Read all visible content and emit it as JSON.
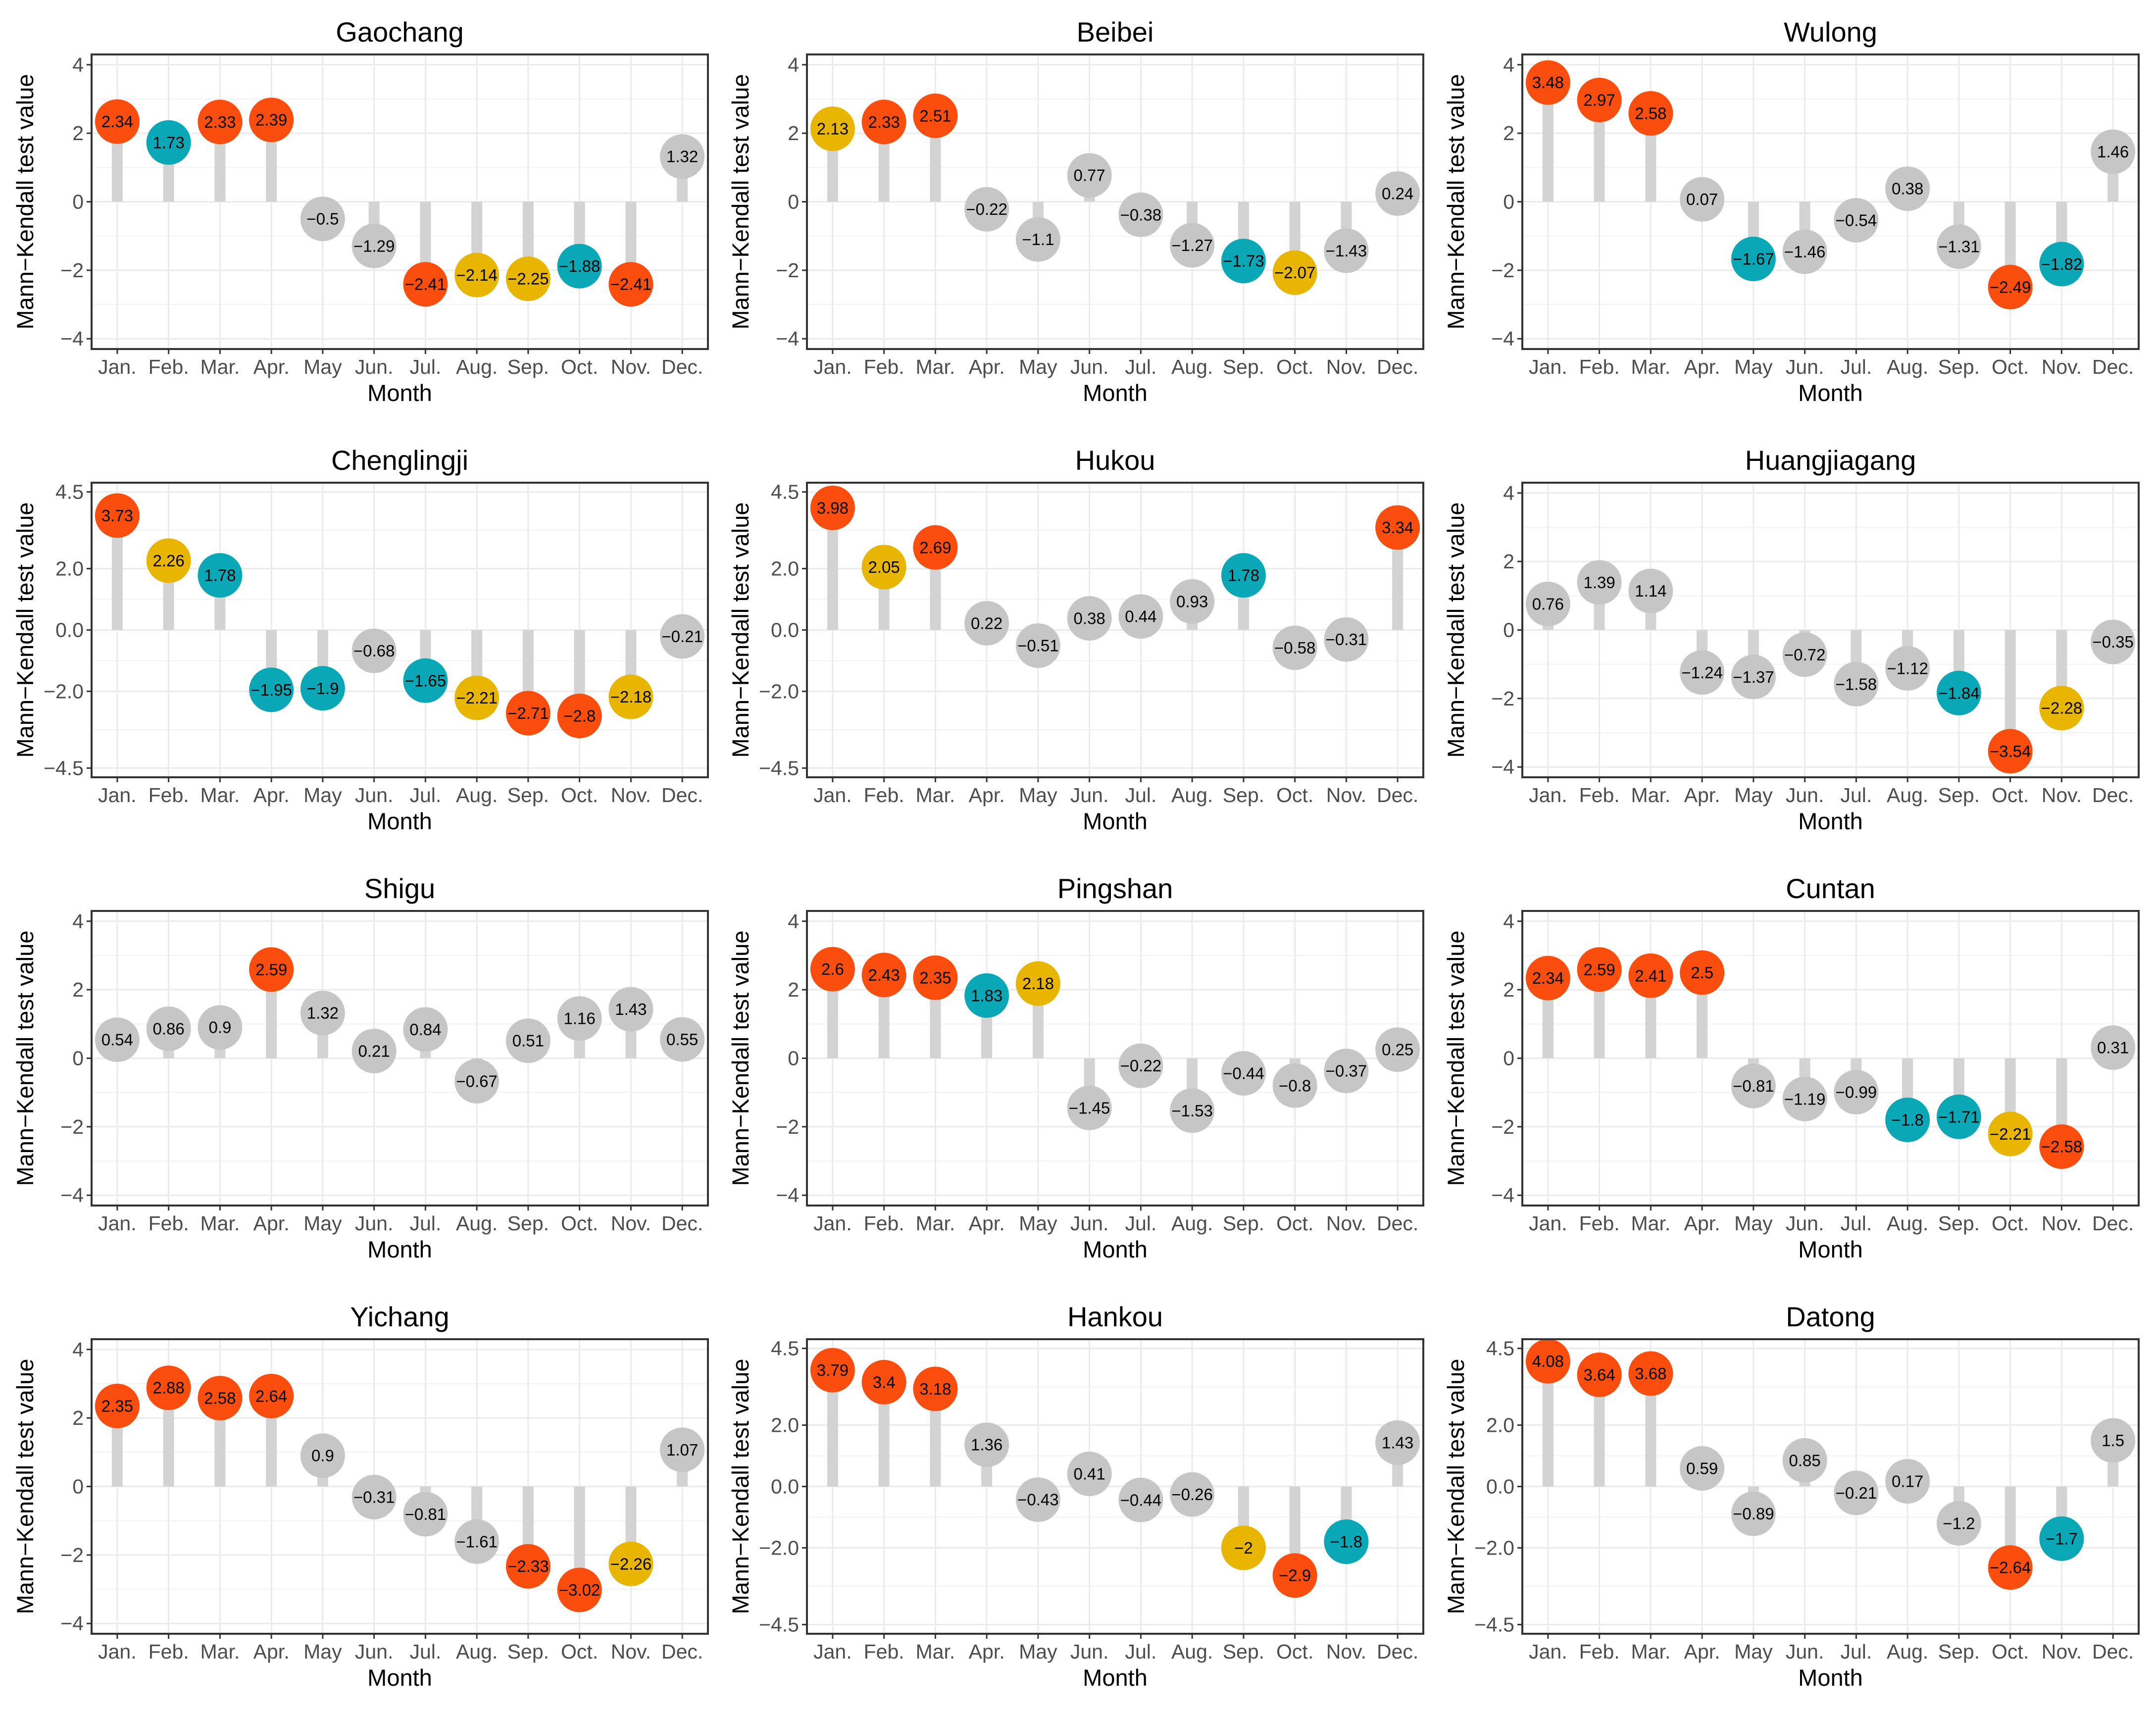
{
  "colors": {
    "red": "#fa4d0e",
    "yellow": "#e8b500",
    "teal": "#0aa8b6",
    "gray": "#c6c6c6",
    "stem": "#d3d3d3"
  },
  "chart_data": [
    {
      "type": "lollipop",
      "title": "Gaochang",
      "xlabel": "Month",
      "ylabel": "Mann−Kendall test value",
      "categories": [
        "Jan.",
        "Feb.",
        "Mar.",
        "Apr.",
        "May",
        "Jun.",
        "Jul.",
        "Aug.",
        "Sep.",
        "Oct.",
        "Nov.",
        "Dec."
      ],
      "values": [
        2.34,
        1.73,
        2.33,
        2.39,
        -0.5,
        -1.29,
        -2.41,
        -2.14,
        -2.25,
        -1.88,
        -2.41,
        1.32
      ],
      "labels": [
        "2.34",
        "1.73",
        "2.33",
        "2.39",
        "−0.5",
        "−1.29",
        "−2.41",
        "−2.14",
        "−2.25",
        "−1.88",
        "−2.41",
        "1.32"
      ],
      "colors": [
        "red",
        "teal",
        "red",
        "red",
        "gray",
        "gray",
        "red",
        "yellow",
        "yellow",
        "teal",
        "red",
        "gray"
      ],
      "yticks": [
        "4",
        "2",
        "0",
        "−2",
        "−4"
      ],
      "ytick_values": [
        4,
        2,
        0,
        -2,
        -4
      ],
      "ylim": [
        -4.3,
        4.3
      ]
    },
    {
      "type": "lollipop",
      "title": "Beibei",
      "xlabel": "Month",
      "ylabel": "Mann−Kendall test value",
      "categories": [
        "Jan.",
        "Feb.",
        "Mar.",
        "Apr.",
        "May",
        "Jun.",
        "Jul.",
        "Aug.",
        "Sep.",
        "Oct.",
        "Nov.",
        "Dec."
      ],
      "values": [
        2.13,
        2.33,
        2.51,
        -0.22,
        -1.1,
        0.77,
        -0.38,
        -1.27,
        -1.73,
        -2.07,
        -1.43,
        0.24
      ],
      "labels": [
        "2.13",
        "2.33",
        "2.51",
        "−0.22",
        "−1.1",
        "0.77",
        "−0.38",
        "−1.27",
        "−1.73",
        "−2.07",
        "−1.43",
        "0.24"
      ],
      "colors": [
        "yellow",
        "red",
        "red",
        "gray",
        "gray",
        "gray",
        "gray",
        "gray",
        "teal",
        "yellow",
        "gray",
        "gray"
      ],
      "yticks": [
        "4",
        "2",
        "0",
        "−2",
        "−4"
      ],
      "ytick_values": [
        4,
        2,
        0,
        -2,
        -4
      ],
      "ylim": [
        -4.3,
        4.3
      ]
    },
    {
      "type": "lollipop",
      "title": "Wulong",
      "xlabel": "Month",
      "ylabel": "Mann−Kendall test value",
      "categories": [
        "Jan.",
        "Feb.",
        "Mar.",
        "Apr.",
        "May",
        "Jun.",
        "Jul.",
        "Aug.",
        "Sep.",
        "Oct.",
        "Nov.",
        "Dec."
      ],
      "values": [
        3.48,
        2.97,
        2.58,
        0.07,
        -1.67,
        -1.46,
        -0.54,
        0.38,
        -1.31,
        -2.49,
        -1.82,
        1.46
      ],
      "labels": [
        "3.48",
        "2.97",
        "2.58",
        "0.07",
        "−1.67",
        "−1.46",
        "−0.54",
        "0.38",
        "−1.31",
        "−2.49",
        "−1.82",
        "1.46"
      ],
      "colors": [
        "red",
        "red",
        "red",
        "gray",
        "teal",
        "gray",
        "gray",
        "gray",
        "gray",
        "red",
        "teal",
        "gray"
      ],
      "yticks": [
        "4",
        "2",
        "0",
        "−2",
        "−4"
      ],
      "ytick_values": [
        4,
        2,
        0,
        -2,
        -4
      ],
      "ylim": [
        -4.3,
        4.3
      ]
    },
    {
      "type": "lollipop",
      "title": "Chenglingji",
      "xlabel": "Month",
      "ylabel": "Mann−Kendall test value",
      "categories": [
        "Jan.",
        "Feb.",
        "Mar.",
        "Apr.",
        "May",
        "Jun.",
        "Jul.",
        "Aug.",
        "Sep.",
        "Oct.",
        "Nov.",
        "Dec."
      ],
      "values": [
        3.73,
        2.26,
        1.78,
        -1.95,
        -1.9,
        -0.68,
        -1.65,
        -2.21,
        -2.71,
        -2.8,
        -2.18,
        -0.21
      ],
      "labels": [
        "3.73",
        "2.26",
        "1.78",
        "−1.95",
        "−1.9",
        "−0.68",
        "−1.65",
        "−2.21",
        "−2.71",
        "−2.8",
        "−2.18",
        "−0.21"
      ],
      "colors": [
        "red",
        "yellow",
        "teal",
        "teal",
        "teal",
        "gray",
        "teal",
        "yellow",
        "red",
        "red",
        "yellow",
        "gray"
      ],
      "yticks": [
        "4.5",
        "2.0",
        "0.0",
        "−2.0",
        "−4.5"
      ],
      "ytick_values": [
        4.5,
        2,
        0,
        -2,
        -4.5
      ],
      "ylim": [
        -4.8,
        4.8
      ]
    },
    {
      "type": "lollipop",
      "title": "Hukou",
      "xlabel": "Month",
      "ylabel": "Mann−Kendall test value",
      "categories": [
        "Jan.",
        "Feb.",
        "Mar.",
        "Apr.",
        "May",
        "Jun.",
        "Jul.",
        "Aug.",
        "Sep.",
        "Oct.",
        "Nov.",
        "Dec."
      ],
      "values": [
        3.98,
        2.05,
        2.69,
        0.22,
        -0.51,
        0.38,
        0.44,
        0.93,
        1.78,
        -0.58,
        -0.31,
        3.34
      ],
      "labels": [
        "3.98",
        "2.05",
        "2.69",
        "0.22",
        "−0.51",
        "0.38",
        "0.44",
        "0.93",
        "1.78",
        "−0.58",
        "−0.31",
        "3.34"
      ],
      "colors": [
        "red",
        "yellow",
        "red",
        "gray",
        "gray",
        "gray",
        "gray",
        "gray",
        "teal",
        "gray",
        "gray",
        "red"
      ],
      "yticks": [
        "4.5",
        "2.0",
        "0.0",
        "−2.0",
        "−4.5"
      ],
      "ytick_values": [
        4.5,
        2,
        0,
        -2,
        -4.5
      ],
      "ylim": [
        -4.8,
        4.8
      ]
    },
    {
      "type": "lollipop",
      "title": "Huangjiagang",
      "xlabel": "Month",
      "ylabel": "Mann−Kendall test value",
      "categories": [
        "Jan.",
        "Feb.",
        "Mar.",
        "Apr.",
        "May",
        "Jun.",
        "Jul.",
        "Aug.",
        "Sep.",
        "Oct.",
        "Nov.",
        "Dec."
      ],
      "values": [
        0.76,
        1.39,
        1.14,
        -1.24,
        -1.37,
        -0.72,
        -1.58,
        -1.12,
        -1.84,
        -3.54,
        -2.28,
        -0.35
      ],
      "labels": [
        "0.76",
        "1.39",
        "1.14",
        "−1.24",
        "−1.37",
        "−0.72",
        "−1.58",
        "−1.12",
        "−1.84",
        "−3.54",
        "−2.28",
        "−0.35"
      ],
      "colors": [
        "gray",
        "gray",
        "gray",
        "gray",
        "gray",
        "gray",
        "gray",
        "gray",
        "teal",
        "red",
        "yellow",
        "gray"
      ],
      "yticks": [
        "4",
        "2",
        "0",
        "−2",
        "−4"
      ],
      "ytick_values": [
        4,
        2,
        0,
        -2,
        -4
      ],
      "ylim": [
        -4.3,
        4.3
      ]
    },
    {
      "type": "lollipop",
      "title": "Shigu",
      "xlabel": "Month",
      "ylabel": "Mann−Kendall test value",
      "categories": [
        "Jan.",
        "Feb.",
        "Mar.",
        "Apr.",
        "May",
        "Jun.",
        "Jul.",
        "Aug.",
        "Sep.",
        "Oct.",
        "Nov.",
        "Dec."
      ],
      "values": [
        0.54,
        0.86,
        0.9,
        2.59,
        1.32,
        0.21,
        0.84,
        -0.67,
        0.51,
        1.16,
        1.43,
        0.55
      ],
      "labels": [
        "0.54",
        "0.86",
        "0.9",
        "2.59",
        "1.32",
        "0.21",
        "0.84",
        "−0.67",
        "0.51",
        "1.16",
        "1.43",
        "0.55"
      ],
      "colors": [
        "gray",
        "gray",
        "gray",
        "red",
        "gray",
        "gray",
        "gray",
        "gray",
        "gray",
        "gray",
        "gray",
        "gray"
      ],
      "yticks": [
        "4",
        "2",
        "0",
        "−2",
        "−4"
      ],
      "ytick_values": [
        4,
        2,
        0,
        -2,
        -4
      ],
      "ylim": [
        -4.3,
        4.3
      ]
    },
    {
      "type": "lollipop",
      "title": "Pingshan",
      "xlabel": "Month",
      "ylabel": "Mann−Kendall test value",
      "categories": [
        "Jan.",
        "Feb.",
        "Mar.",
        "Apr.",
        "May",
        "Jun.",
        "Jul.",
        "Aug.",
        "Sep.",
        "Oct.",
        "Nov.",
        "Dec."
      ],
      "values": [
        2.6,
        2.43,
        2.35,
        1.83,
        2.18,
        -1.45,
        -0.22,
        -1.53,
        -0.44,
        -0.8,
        -0.37,
        0.25
      ],
      "labels": [
        "2.6",
        "2.43",
        "2.35",
        "1.83",
        "2.18",
        "−1.45",
        "−0.22",
        "−1.53",
        "−0.44",
        "−0.8",
        "−0.37",
        "0.25"
      ],
      "colors": [
        "red",
        "red",
        "red",
        "teal",
        "yellow",
        "gray",
        "gray",
        "gray",
        "gray",
        "gray",
        "gray",
        "gray"
      ],
      "yticks": [
        "4",
        "2",
        "0",
        "−2",
        "−4"
      ],
      "ytick_values": [
        4,
        2,
        0,
        -2,
        -4
      ],
      "ylim": [
        -4.3,
        4.3
      ]
    },
    {
      "type": "lollipop",
      "title": "Cuntan",
      "xlabel": "Month",
      "ylabel": "Mann−Kendall test value",
      "categories": [
        "Jan.",
        "Feb.",
        "Mar.",
        "Apr.",
        "May",
        "Jun.",
        "Jul.",
        "Aug.",
        "Sep.",
        "Oct.",
        "Nov.",
        "Dec."
      ],
      "values": [
        2.34,
        2.59,
        2.41,
        2.5,
        -0.81,
        -1.19,
        -0.99,
        -1.8,
        -1.71,
        -2.21,
        -2.58,
        0.31
      ],
      "labels": [
        "2.34",
        "2.59",
        "2.41",
        "2.5",
        "−0.81",
        "−1.19",
        "−0.99",
        "−1.8",
        "−1.71",
        "−2.21",
        "−2.58",
        "0.31"
      ],
      "colors": [
        "red",
        "red",
        "red",
        "red",
        "gray",
        "gray",
        "gray",
        "teal",
        "teal",
        "yellow",
        "red",
        "gray"
      ],
      "yticks": [
        "4",
        "2",
        "0",
        "−2",
        "−4"
      ],
      "ytick_values": [
        4,
        2,
        0,
        -2,
        -4
      ],
      "ylim": [
        -4.3,
        4.3
      ]
    },
    {
      "type": "lollipop",
      "title": "Yichang",
      "xlabel": "Month",
      "ylabel": "Mann−Kendall test value",
      "categories": [
        "Jan.",
        "Feb.",
        "Mar.",
        "Apr.",
        "May",
        "Jun.",
        "Jul.",
        "Aug.",
        "Sep.",
        "Oct.",
        "Nov.",
        "Dec."
      ],
      "values": [
        2.35,
        2.88,
        2.58,
        2.64,
        0.9,
        -0.31,
        -0.81,
        -1.61,
        -2.33,
        -3.02,
        -2.26,
        1.07
      ],
      "labels": [
        "2.35",
        "2.88",
        "2.58",
        "2.64",
        "0.9",
        "−0.31",
        "−0.81",
        "−1.61",
        "−2.33",
        "−3.02",
        "−2.26",
        "1.07"
      ],
      "colors": [
        "red",
        "red",
        "red",
        "red",
        "gray",
        "gray",
        "gray",
        "gray",
        "red",
        "red",
        "yellow",
        "gray"
      ],
      "yticks": [
        "4",
        "2",
        "0",
        "−2",
        "−4"
      ],
      "ytick_values": [
        4,
        2,
        0,
        -2,
        -4
      ],
      "ylim": [
        -4.3,
        4.3
      ]
    },
    {
      "type": "lollipop",
      "title": "Hankou",
      "xlabel": "Month",
      "ylabel": "Mann−Kendall test value",
      "categories": [
        "Jan.",
        "Feb.",
        "Mar.",
        "Apr.",
        "May",
        "Jun.",
        "Jul.",
        "Aug.",
        "Sep.",
        "Oct.",
        "Nov.",
        "Dec."
      ],
      "values": [
        3.79,
        3.4,
        3.18,
        1.36,
        -0.43,
        0.41,
        -0.44,
        -0.26,
        -2,
        -2.9,
        -1.8,
        1.43
      ],
      "labels": [
        "3.79",
        "3.4",
        "3.18",
        "1.36",
        "−0.43",
        "0.41",
        "−0.44",
        "−0.26",
        "−2",
        "−2.9",
        "−1.8",
        "1.43"
      ],
      "colors": [
        "red",
        "red",
        "red",
        "gray",
        "gray",
        "gray",
        "gray",
        "gray",
        "yellow",
        "red",
        "teal",
        "gray"
      ],
      "yticks": [
        "4.5",
        "2.0",
        "0.0",
        "−2.0",
        "−4.5"
      ],
      "ytick_values": [
        4.5,
        2,
        0,
        -2,
        -4.5
      ],
      "ylim": [
        -4.8,
        4.8
      ]
    },
    {
      "type": "lollipop",
      "title": "Datong",
      "xlabel": "Month",
      "ylabel": "Mann−Kendall test value",
      "categories": [
        "Jan.",
        "Feb.",
        "Mar.",
        "Apr.",
        "May",
        "Jun.",
        "Jul.",
        "Aug.",
        "Sep.",
        "Oct.",
        "Nov.",
        "Dec."
      ],
      "values": [
        4.08,
        3.64,
        3.68,
        0.59,
        -0.89,
        0.85,
        -0.21,
        0.17,
        -1.2,
        -2.64,
        -1.7,
        1.5
      ],
      "labels": [
        "4.08",
        "3.64",
        "3.68",
        "0.59",
        "−0.89",
        "0.85",
        "−0.21",
        "0.17",
        "−1.2",
        "−2.64",
        "−1.7",
        "1.5"
      ],
      "colors": [
        "red",
        "red",
        "red",
        "gray",
        "gray",
        "gray",
        "gray",
        "gray",
        "gray",
        "red",
        "teal",
        "gray"
      ],
      "yticks": [
        "4.5",
        "2.0",
        "0.0",
        "−2.0",
        "−4.5"
      ],
      "ytick_values": [
        4.5,
        2,
        0,
        -2,
        -4.5
      ],
      "ylim": [
        -4.8,
        4.8
      ]
    }
  ]
}
